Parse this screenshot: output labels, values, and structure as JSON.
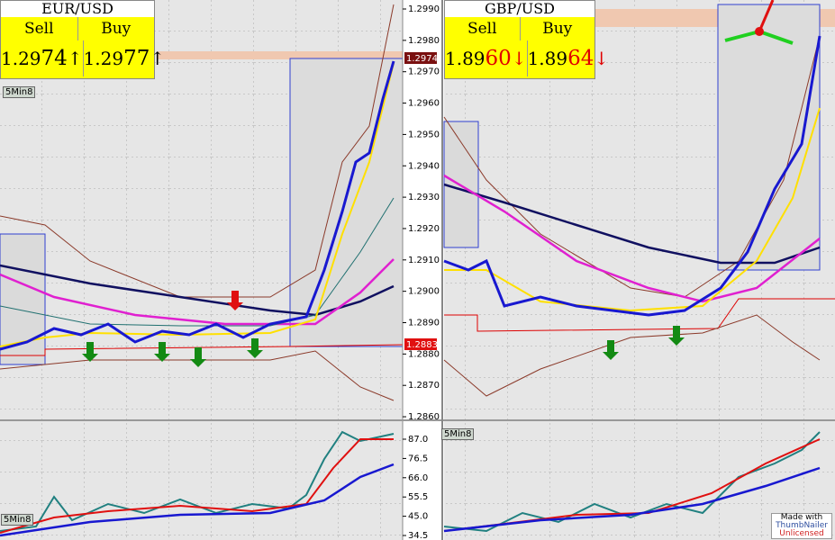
{
  "panels": [
    {
      "symbol": "EUR/USD",
      "sell_label": "Sell",
      "buy_label": "Buy",
      "sell": {
        "prefix": "1.29",
        "pips": "74",
        "arrow": "↑"
      },
      "buy": {
        "prefix": "1.29",
        "pips": "77",
        "arrow": "↑"
      },
      "timeframe": "5Min8",
      "osc_timeframe": "5Min8"
    },
    {
      "symbol": "GBP/USD",
      "sell_label": "Sell",
      "buy_label": "Buy",
      "sell": {
        "prefix": "1.89",
        "pips": "60",
        "arrow": "↓"
      },
      "buy": {
        "prefix": "1.89",
        "pips": "64",
        "arrow": "↓"
      },
      "osc_timeframe": "5Min8"
    }
  ],
  "price_axis": {
    "ticks": [
      "1.2990",
      "1.2980",
      "1.2970",
      "1.2960",
      "1.2950",
      "1.2940",
      "1.2930",
      "1.2920",
      "1.2910",
      "1.2900",
      "1.2890",
      "1.2880",
      "1.2870",
      "1.2860"
    ],
    "current": "1.2974",
    "level": "1.2883"
  },
  "oscillator_axis": {
    "ticks": [
      "87.0",
      "76.5",
      "66.0",
      "55.5",
      "45.0",
      "34.5"
    ]
  },
  "watermark": [
    "Made with",
    "ThumbNailer",
    "Unlicensed"
  ]
}
